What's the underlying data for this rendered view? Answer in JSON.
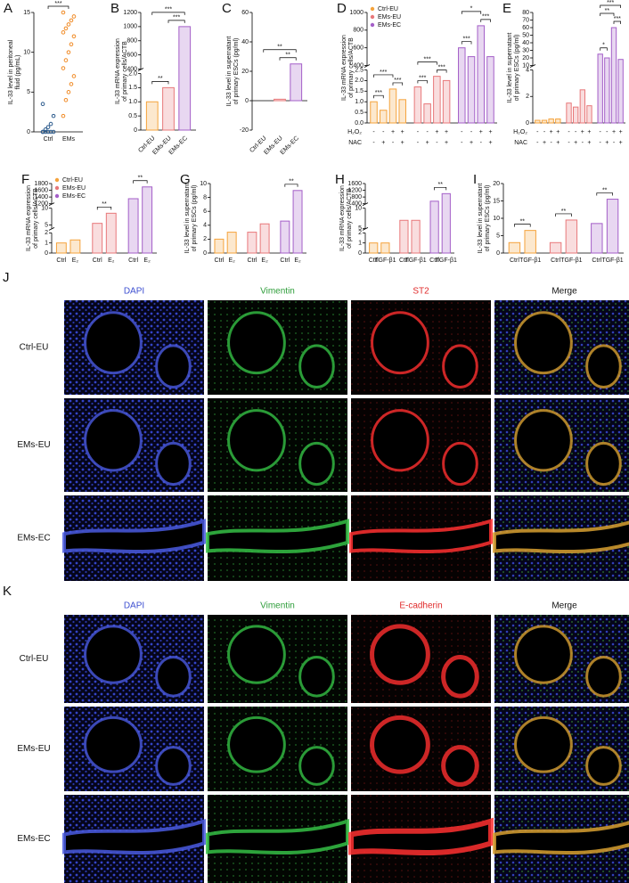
{
  "chart_data": [
    {
      "label": "A",
      "type": "violin",
      "ylabel": [
        "IL-33 level in peritoneal",
        "fluid (pg/mL)"
      ],
      "categories": [
        "Ctrl",
        "EMs"
      ],
      "colors": [
        "#2b5a8c",
        "#f08a24"
      ],
      "values": [
        [
          0,
          0,
          0,
          0,
          0,
          0,
          0.3,
          0.6,
          1,
          2,
          3.5
        ],
        [
          2,
          4,
          5,
          6,
          7,
          8,
          9,
          10,
          11,
          12,
          12.5,
          13,
          13.5,
          14,
          14.5,
          15
        ]
      ],
      "y_segments": [
        {
          "ylim": [
            0,
            15
          ],
          "yticks": [
            0,
            5,
            10,
            15
          ]
        }
      ],
      "significance": [
        "***"
      ]
    },
    {
      "label": "B",
      "type": "bar",
      "ylabel": [
        "IL-33 mRNA expression",
        "of primary cells/ACTB"
      ],
      "categories": [
        "Ctrl-EU",
        "EMs-EU",
        "EMs-EC"
      ],
      "colors": [
        "#f5a33c",
        "#e8787a",
        "#a45fc8"
      ],
      "values": [
        1.0,
        1.5,
        1000
      ],
      "y_segments": [
        {
          "ylim": [
            0,
            2
          ],
          "yticks": [
            0,
            {
              "value": 0.5,
              "label": "0.5"
            },
            {
              "value": 1,
              "label": "1.0"
            },
            1.5,
            {
              "value": 2,
              "label": "2.0"
            }
          ]
        },
        {
          "ylim": [
            400,
            1200
          ],
          "yticks": [
            400,
            600,
            800,
            1000,
            1200
          ]
        }
      ],
      "significance": [
        "**",
        "***",
        "***"
      ]
    },
    {
      "label": "C",
      "type": "bar",
      "ylabel": [
        "IL-33 level in supernatant",
        "of primary ESCs (pg/ml)"
      ],
      "categories": [
        "Ctrl-EU",
        "EMs-EU",
        "EMs-EC"
      ],
      "colors": [
        "#f5a33c",
        "#e8787a",
        "#a45fc8"
      ],
      "values": [
        0,
        1,
        25
      ],
      "y_segments": [
        {
          "ylim": [
            -20,
            60
          ],
          "yticks": [
            -20,
            0,
            20,
            40,
            60
          ]
        }
      ],
      "significance": [
        "**",
        "**"
      ]
    },
    {
      "label": "D",
      "type": "bar",
      "ylabel": [
        "IL-33 mRNA expression",
        "of primary cells/ACTB"
      ],
      "legend": [
        {
          "name": "Ctrl-EU",
          "color": "#f5a33c"
        },
        {
          "name": "EMs-EU",
          "color": "#e8787a"
        },
        {
          "name": "EMs-EC",
          "color": "#a45fc8"
        }
      ],
      "colors": [
        "#f5a33c",
        "#f5a33c",
        "#f5a33c",
        "#f5a33c",
        "#e8787a",
        "#e8787a",
        "#e8787a",
        "#e8787a",
        "#a45fc8",
        "#a45fc8",
        "#a45fc8",
        "#a45fc8"
      ],
      "values": [
        1.0,
        0.6,
        1.6,
        1.1,
        1.7,
        0.9,
        2.2,
        2.0,
        600,
        500,
        850,
        500
      ],
      "treatments": [
        {
          "name": "H₂O₂",
          "marks": [
            "-",
            "-",
            "+",
            "+",
            "-",
            "-",
            "+",
            "+",
            "-",
            "-",
            "+",
            "+"
          ]
        },
        {
          "name": "NAC",
          "marks": [
            "-",
            "+",
            "-",
            "+",
            "-",
            "+",
            "-",
            "+",
            "-",
            "+",
            "-",
            "+"
          ]
        }
      ],
      "y_segments": [
        {
          "ylim": [
            0,
            2.5
          ],
          "yticks": [
            {
              "value": 0,
              "label": "0.0"
            },
            {
              "value": 0.5,
              "label": "0.5"
            },
            {
              "value": 1,
              "label": "1.0"
            },
            1.5,
            {
              "value": 2,
              "label": "2.0"
            },
            2.5
          ]
        },
        {
          "ylim": [
            400,
            1000
          ],
          "yticks": [
            400,
            600,
            800,
            1000
          ]
        }
      ],
      "significance": [
        "***",
        "***",
        "***",
        "***",
        "***",
        "***",
        "***",
        "*",
        "***"
      ]
    },
    {
      "label": "E",
      "type": "bar",
      "ylabel": [
        "IL-33 level in supernatant",
        "of primary ESCs (pg/ml)"
      ],
      "colors": [
        "#f5a33c",
        "#f5a33c",
        "#f5a33c",
        "#f5a33c",
        "#e8787a",
        "#e8787a",
        "#e8787a",
        "#e8787a",
        "#a45fc8",
        "#a45fc8",
        "#a45fc8",
        "#a45fc8"
      ],
      "values": [
        0.2,
        0.2,
        0.3,
        0.3,
        1.5,
        1.2,
        2.5,
        1.3,
        25,
        20,
        60,
        18
      ],
      "treatments": [
        {
          "name": "H₂O₂",
          "marks": [
            "-",
            "-",
            "+",
            "+",
            "-",
            "-",
            "+",
            "+",
            "-",
            "-",
            "+",
            "+"
          ]
        },
        {
          "name": "NAC",
          "marks": [
            "-",
            "+",
            "-",
            "+",
            "-",
            "+",
            "-",
            "+",
            "-",
            "+",
            "-",
            "+"
          ]
        }
      ],
      "y_segments": [
        {
          "ylim": [
            0,
            4
          ],
          "yticks": [
            0,
            2,
            4
          ]
        },
        {
          "ylim": [
            10,
            80
          ],
          "yticks": [
            10,
            20,
            30,
            40,
            50,
            60,
            70,
            80
          ]
        }
      ],
      "significance": [
        "*",
        "**",
        "***",
        "***"
      ]
    },
    {
      "label": "F",
      "type": "bar",
      "ylabel": [
        "IL-33 mRNA expression",
        "of primary cells/ACTB"
      ],
      "legend": [
        {
          "name": "Ctrl-EU",
          "color": "#f5a33c"
        },
        {
          "name": "EMs-EU",
          "color": "#e8787a"
        },
        {
          "name": "EMs-EC",
          "color": "#a45fc8"
        }
      ],
      "categories": [
        "Ctrl",
        "E₂",
        "Ctrl",
        "E₂",
        "Ctrl",
        "E₂"
      ],
      "colors": [
        "#f5a33c",
        "#f5a33c",
        "#e8787a",
        "#e8787a",
        "#a45fc8",
        "#a45fc8"
      ],
      "values": [
        1.0,
        1.3,
        5.5,
        8.5,
        1350,
        1700
      ],
      "y_segments": [
        {
          "ylim": [
            0,
            2
          ],
          "yticks": [
            0,
            1,
            2
          ]
        },
        {
          "ylim": [
            4,
            10
          ],
          "yticks": [
            5,
            10
          ]
        },
        {
          "ylim": [
            1200,
            1800
          ],
          "yticks": [
            1200,
            1400,
            1600,
            1800
          ]
        }
      ],
      "significance": [
        "**",
        "**"
      ]
    },
    {
      "label": "G",
      "type": "bar",
      "ylabel": [
        "IL-33 level in supernatant",
        "of primary ESCs (pg/ml)"
      ],
      "categories": [
        "Ctrl",
        "E₂",
        "Ctrl",
        "E₂",
        "Ctrl",
        "E₂"
      ],
      "colors": [
        "#f5a33c",
        "#f5a33c",
        "#e8787a",
        "#e8787a",
        "#a45fc8",
        "#a45fc8"
      ],
      "values": [
        2,
        3,
        3,
        4.2,
        4.6,
        9
      ],
      "y_segments": [
        {
          "ylim": [
            0,
            10
          ],
          "yticks": [
            0,
            2,
            4,
            6,
            8,
            10
          ]
        }
      ],
      "significance": [
        "**"
      ]
    },
    {
      "label": "H",
      "type": "bar",
      "ylabel": [
        "IL-33 mRNA expression",
        "of primary cells/ACTB"
      ],
      "categories": [
        "Ctrl",
        "TGF-β1",
        "Ctrl",
        "TGF-β1",
        "Ctrl",
        "TGF-β1"
      ],
      "colors": [
        "#f5a33c",
        "#f5a33c",
        "#e8787a",
        "#e8787a",
        "#a45fc8",
        "#a45fc8"
      ],
      "values": [
        1,
        1,
        7,
        7,
        550,
        1000
      ],
      "y_segments": [
        {
          "ylim": [
            0,
            2
          ],
          "yticks": [
            0,
            1,
            2
          ]
        },
        {
          "ylim": [
            5,
            10
          ],
          "yticks": [
            5,
            10
          ]
        },
        {
          "ylim": [
            400,
            1600
          ],
          "yticks": [
            400,
            800,
            1200,
            1600
          ]
        }
      ],
      "significance": [
        "**"
      ]
    },
    {
      "label": "I",
      "type": "bar",
      "ylabel": [
        "IL-33 level in supernatant",
        "of primary ESCs (pg/ml)"
      ],
      "categories": [
        "Ctrl",
        "TGF-β1",
        "Ctrl",
        "TGF-β1",
        "Ctrl",
        "TGF-β1"
      ],
      "colors": [
        "#f5a33c",
        "#f5a33c",
        "#e8787a",
        "#e8787a",
        "#a45fc8",
        "#a45fc8"
      ],
      "values": [
        3,
        6.5,
        3,
        9.5,
        8.5,
        15.5
      ],
      "y_segments": [
        {
          "ylim": [
            0,
            20
          ],
          "yticks": [
            0,
            5,
            10,
            15,
            20
          ]
        }
      ],
      "significance": [
        "**",
        "**",
        "**"
      ]
    }
  ],
  "image_panels": [
    {
      "label": "J",
      "columns": [
        "DAPI",
        "Vimentin",
        "ST2",
        "Merge"
      ],
      "rows": [
        "Ctrl-EU",
        "EMs-EU",
        "EMs-EC"
      ]
    },
    {
      "label": "K",
      "columns": [
        "DAPI",
        "Vimentin",
        "E-cadherin",
        "Merge"
      ],
      "rows": [
        "Ctrl-EU",
        "EMs-EU",
        "EMs-EC"
      ]
    }
  ]
}
